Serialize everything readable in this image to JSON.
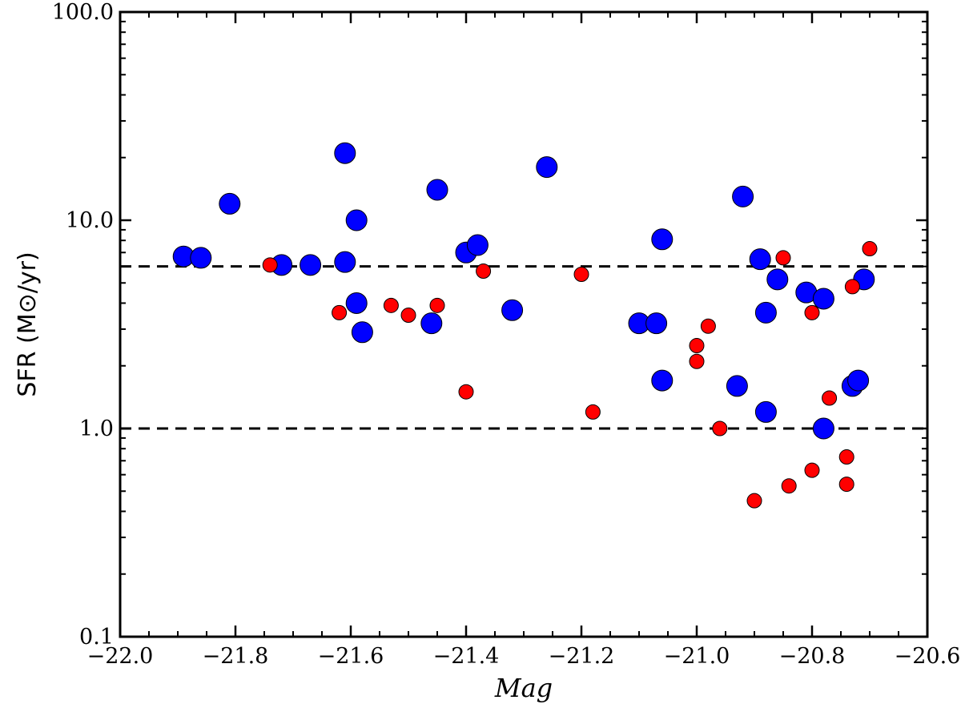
{
  "chart_data": {
    "type": "scatter",
    "xlabel": "Mag",
    "ylabel": "SFR (M⊙/yr)",
    "xlim": [
      -22.0,
      -20.6
    ],
    "ylim": [
      0.1,
      100.0
    ],
    "yscale": "log",
    "x_ticks": [
      "−22.0",
      "−21.8",
      "−21.6",
      "−21.4",
      "−21.2",
      "−21.0",
      "−20.8",
      "−20.6"
    ],
    "y_ticks": [
      "0.1",
      "1.0",
      "10.0",
      "100.0"
    ],
    "grid": false,
    "reference_lines": [
      6.0,
      1.0
    ],
    "series": [
      {
        "color": "#0000ff",
        "marker_size": "large",
        "points": [
          [
            -21.89,
            6.7
          ],
          [
            -21.86,
            6.6
          ],
          [
            -21.81,
            12.0
          ],
          [
            -21.72,
            6.1
          ],
          [
            -21.67,
            6.1
          ],
          [
            -21.61,
            21.0
          ],
          [
            -21.61,
            6.3
          ],
          [
            -21.59,
            10.0
          ],
          [
            -21.59,
            4.0
          ],
          [
            -21.58,
            2.9
          ],
          [
            -21.46,
            3.2
          ],
          [
            -21.45,
            14.0
          ],
          [
            -21.4,
            7.0
          ],
          [
            -21.38,
            7.6
          ],
          [
            -21.32,
            3.7
          ],
          [
            -21.26,
            18.0
          ],
          [
            -21.1,
            3.2
          ],
          [
            -21.07,
            3.2
          ],
          [
            -21.06,
            8.1
          ],
          [
            -21.06,
            1.7
          ],
          [
            -20.93,
            1.6
          ],
          [
            -20.92,
            13.0
          ],
          [
            -20.89,
            6.5
          ],
          [
            -20.88,
            3.6
          ],
          [
            -20.88,
            1.2
          ],
          [
            -20.86,
            5.2
          ],
          [
            -20.81,
            4.5
          ],
          [
            -20.78,
            4.2
          ],
          [
            -20.78,
            1.0
          ],
          [
            -20.73,
            1.6
          ],
          [
            -20.72,
            1.7
          ],
          [
            -20.71,
            5.2
          ]
        ]
      },
      {
        "color": "#ff0000",
        "marker_size": "small",
        "points": [
          [
            -21.74,
            6.1
          ],
          [
            -21.62,
            3.6
          ],
          [
            -21.53,
            3.9
          ],
          [
            -21.5,
            3.5
          ],
          [
            -21.45,
            3.9
          ],
          [
            -21.4,
            1.5
          ],
          [
            -21.37,
            5.7
          ],
          [
            -21.2,
            5.5
          ],
          [
            -21.18,
            1.2
          ],
          [
            -21.0,
            2.5
          ],
          [
            -21.0,
            2.1
          ],
          [
            -20.98,
            3.1
          ],
          [
            -20.96,
            1.0
          ],
          [
            -20.9,
            0.45
          ],
          [
            -20.85,
            6.6
          ],
          [
            -20.84,
            0.53
          ],
          [
            -20.8,
            3.6
          ],
          [
            -20.8,
            0.63
          ],
          [
            -20.77,
            1.4
          ],
          [
            -20.74,
            0.73
          ],
          [
            -20.74,
            0.54
          ],
          [
            -20.73,
            4.8
          ],
          [
            -20.7,
            7.3
          ]
        ]
      }
    ]
  }
}
